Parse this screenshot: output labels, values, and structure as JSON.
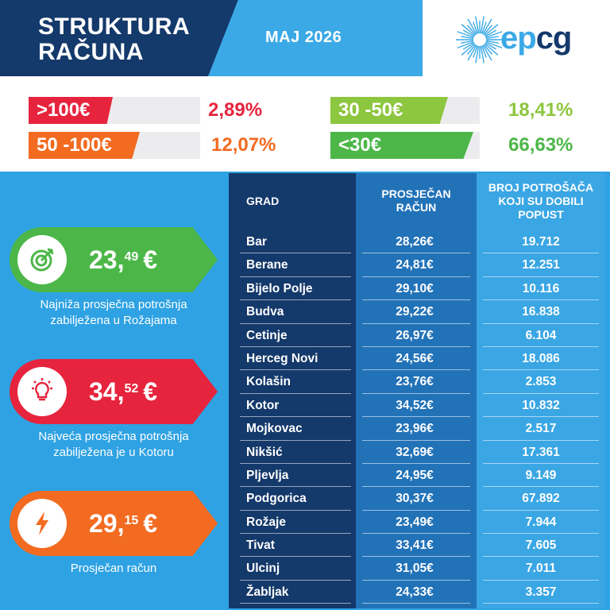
{
  "header": {
    "title_line1": "STRUKTURA",
    "title_line2": "RAČUNA",
    "month": "MAJ 2026",
    "logo_text_ep": "ep",
    "logo_text_cg": "cg"
  },
  "distribution": [
    {
      "label": ">100€",
      "value": "2,89%",
      "color": "#e6243d",
      "share": 2.89
    },
    {
      "label": "50 -100€",
      "value": "12,07%",
      "color": "#f26b21",
      "share": 12.07
    },
    {
      "label": "30 -50€",
      "value": "18,41%",
      "color": "#8dc63f",
      "share": 18.41
    },
    {
      "label": "<30€",
      "value": "66,63%",
      "color": "#4cb748",
      "share": 66.63
    }
  ],
  "cards": [
    {
      "icon": "target-icon",
      "int": "23,",
      "dec": "49",
      "cur": "€",
      "color": "#4cb748",
      "caption_line1": "Najniža prosječna potrošnja",
      "caption_line2": "zabilježena u Rožajama"
    },
    {
      "icon": "lightbulb-icon",
      "int": "34,",
      "dec": "52",
      "cur": "€",
      "color": "#e6243d",
      "caption_line1": "Najveća prosječna potrošnja",
      "caption_line2": "zabilježena je u Kotoru"
    },
    {
      "icon": "lightning-icon",
      "int": "29,",
      "dec": "15",
      "cur": "€",
      "color": "#f26b21",
      "caption_line1": "Prosječan račun",
      "caption_line2": ""
    }
  ],
  "table": {
    "headers": {
      "grad": "GRAD",
      "prosjecan_line1": "PROSJEČAN",
      "prosjecan_line2": "RAČUN",
      "broj_line1": "BROJ POTROŠAČA",
      "broj_line2": "KOJI SU DOBILI",
      "broj_line3": "POPUST"
    },
    "rows": [
      {
        "grad": "Bar",
        "racun": "28,26€",
        "broj": "19.712"
      },
      {
        "grad": "Berane",
        "racun": "24,81€",
        "broj": "12.251"
      },
      {
        "grad": "Bijelo Polje",
        "racun": "29,10€",
        "broj": "10.116"
      },
      {
        "grad": "Budva",
        "racun": "29,22€",
        "broj": "16.838"
      },
      {
        "grad": "Cetinje",
        "racun": "26,97€",
        "broj": "6.104"
      },
      {
        "grad": "Herceg Novi",
        "racun": "24,56€",
        "broj": "18.086"
      },
      {
        "grad": "Kolašin",
        "racun": "23,76€",
        "broj": "2.853"
      },
      {
        "grad": "Kotor",
        "racun": "34,52€",
        "broj": "10.832"
      },
      {
        "grad": "Mojkovac",
        "racun": "23,96€",
        "broj": "2.517"
      },
      {
        "grad": "Nikšić",
        "racun": "32,69€",
        "broj": "17.361"
      },
      {
        "grad": "Pljevlja",
        "racun": "24,95€",
        "broj": "9.149"
      },
      {
        "grad": "Podgorica",
        "racun": "30,37€",
        "broj": "67.892"
      },
      {
        "grad": "Rožaje",
        "racun": "23,49€",
        "broj": "7.944"
      },
      {
        "grad": "Tivat",
        "racun": "33,41€",
        "broj": "7.605"
      },
      {
        "grad": "Ulcinj",
        "racun": "31,05€",
        "broj": "7.011"
      },
      {
        "grad": "Žabljak",
        "racun": "24,33€",
        "broj": "3.357"
      }
    ]
  }
}
